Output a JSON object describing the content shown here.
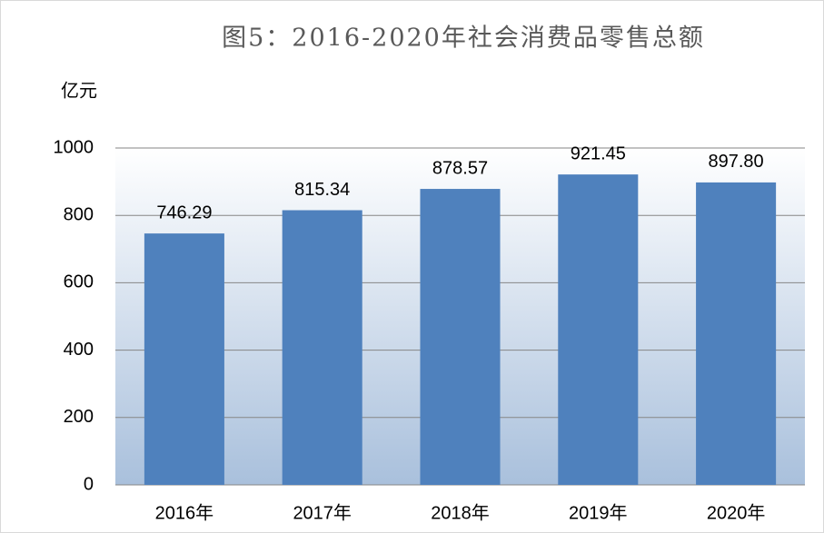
{
  "chart_data": {
    "type": "bar",
    "title": "图5：2016-2020年社会消费品零售总额",
    "y_unit": "亿元",
    "categories": [
      "2016年",
      "2017年",
      "2018年",
      "2019年",
      "2020年"
    ],
    "values": [
      746.29,
      815.34,
      878.57,
      921.45,
      897.8
    ],
    "value_labels": [
      "746.29",
      "815.34",
      "878.57",
      "921.45",
      "897.80"
    ],
    "color": "#4f81bd",
    "ylim": [
      0,
      1000
    ],
    "yticks": [
      0,
      200,
      400,
      600,
      800,
      1000
    ],
    "grid": true
  }
}
